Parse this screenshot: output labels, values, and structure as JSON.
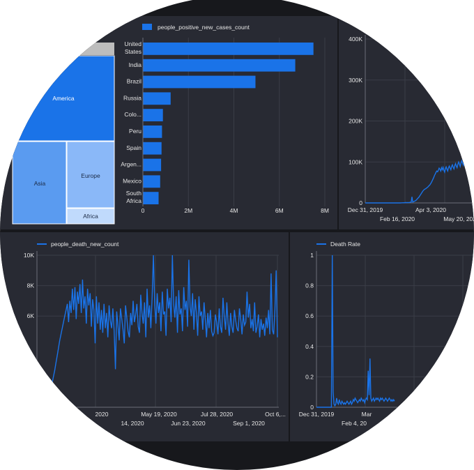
{
  "colors": {
    "background": "#17181c",
    "panel": "#282a33",
    "grid": "#3a3d47",
    "text": "#e6e6e6",
    "series": "#1a73e8",
    "treemap_america": "#1a73e8",
    "treemap_asia": "#5a9bf0",
    "treemap_europe": "#8ab8f8",
    "treemap_africa": "#c0dafc",
    "treemap_top": "#bdbdbd"
  },
  "chart_data": [
    {
      "type": "treemap",
      "items": [
        {
          "label": "America",
          "color": "#1a73e8"
        },
        {
          "label": "Asia",
          "color": "#5a9bf0"
        },
        {
          "label": "Europe",
          "color": "#8ab8f8"
        },
        {
          "label": "Africa",
          "color": "#c0dafc"
        }
      ]
    },
    {
      "type": "bar",
      "orientation": "horizontal",
      "legend": "people_positive_new_cases_count",
      "categories": [
        "United States",
        "India",
        "Brazil",
        "Russia",
        "Colo...",
        "Peru",
        "Spain",
        "Argen...",
        "Mexico",
        "South Africa"
      ],
      "values": [
        7500000,
        6700000,
        4950000,
        1220000,
        880000,
        840000,
        820000,
        800000,
        760000,
        690000
      ],
      "xlim": [
        0,
        8000000
      ],
      "xticks": [
        "0",
        "2M",
        "4M",
        "6M",
        "8M"
      ]
    },
    {
      "type": "line",
      "yticks": [
        "0",
        "100K",
        "200K",
        "300K",
        "400K"
      ],
      "ylim": [
        0,
        400000
      ],
      "xticks_top": [
        "Dec 31, 2019",
        "Apr 3, 2020"
      ],
      "xticks_bottom": [
        "Feb 16, 2020",
        "May 20, 2020"
      ],
      "x_start": "2019-12-31",
      "values": [
        0,
        0,
        0,
        0,
        0,
        0,
        0,
        0,
        0,
        0,
        0,
        0,
        0,
        0,
        0,
        0,
        0,
        0,
        0,
        0,
        0,
        0,
        0,
        0,
        0,
        0,
        0,
        0,
        0,
        0,
        0,
        0,
        0,
        0,
        0,
        0,
        0,
        0,
        0,
        0,
        0,
        0,
        0,
        0,
        0,
        0,
        200,
        400,
        300,
        500,
        300,
        600,
        800,
        600,
        900,
        700,
        1000,
        1200,
        1500,
        2000,
        15000,
        2000,
        3000,
        4000,
        5000,
        6000,
        8000,
        10000,
        12000,
        14000,
        17000,
        20000,
        23000,
        26000,
        29000,
        31000,
        33000,
        34000,
        35000,
        37000,
        38000,
        40000,
        42000,
        44000,
        47000,
        50000,
        54000,
        58000,
        62000,
        67000,
        71000,
        75000,
        78000,
        76000,
        80000,
        85000,
        82000,
        78000,
        86000,
        81000,
        87000,
        80000,
        75000,
        84000,
        88000,
        82000,
        78000,
        86000,
        90000,
        85000,
        81000,
        89000,
        93000,
        87000,
        83000,
        91000,
        96000,
        90000,
        86000,
        94000,
        100000,
        95000,
        89000,
        97000,
        103000,
        98000,
        92000,
        100000,
        106000,
        112000
      ]
    },
    {
      "type": "line",
      "legend": "people_death_new_count",
      "yticks": [
        "6K",
        "8K",
        "10K"
      ],
      "ylim": [
        0,
        10000
      ],
      "xticks_top": [
        "2020",
        "May 19, 2020",
        "Jul 28, 2020",
        "Oct 6,..."
      ],
      "xticks_bottom": [
        "14, 2020",
        "Jun 23, 2020",
        "Sep 1, 2020"
      ],
      "x_start": "2020-03-01",
      "values": [
        0,
        20,
        50,
        80,
        120,
        200,
        300,
        450,
        650,
        800,
        1000,
        1300,
        1600,
        2000,
        2400,
        2900,
        3400,
        3900,
        4400,
        4800,
        5200,
        5600,
        6000,
        6400,
        6800,
        5600,
        7000,
        6200,
        7800,
        6400,
        7900,
        5800,
        7600,
        6800,
        8100,
        6200,
        8400,
        6500,
        7300,
        5500,
        7800,
        6700,
        7500,
        5300,
        7100,
        6400,
        4200,
        7300,
        5500,
        6900,
        5100,
        6400,
        4900,
        6800,
        5200,
        6200,
        4600,
        6700,
        5700,
        5200,
        6500,
        5000,
        2500,
        6300,
        5400,
        4400,
        6500,
        5800,
        5100,
        4200,
        6700,
        5900,
        5000,
        4600,
        6200,
        5400,
        7000,
        5600,
        6100,
        6800,
        5300,
        4900,
        7400,
        6200,
        5500,
        6900,
        4600,
        7800,
        5900,
        6700,
        5200,
        7200,
        10000,
        6800,
        5500,
        7500,
        6200,
        6900,
        5000,
        7600,
        6100,
        6300,
        4700,
        7800,
        6500,
        7200,
        5600,
        10000,
        6800,
        5900,
        7300,
        4900,
        7700,
        6100,
        6500,
        5000,
        7900,
        6400,
        7000,
        5300,
        9700,
        6600,
        6000,
        7500,
        5100,
        7100,
        6200,
        4700,
        7300,
        6000,
        6300,
        5100,
        6900,
        5800,
        4600,
        6200,
        5200,
        6400,
        5000,
        4700,
        4900,
        6100,
        5600,
        4800,
        6500,
        5300,
        4900,
        7200,
        6000,
        5100,
        6900,
        5500,
        4700,
        6200,
        5300,
        4900,
        6400,
        5700,
        5200,
        5000,
        6500,
        5800,
        4800,
        6100,
        5400,
        5600,
        7600,
        5900,
        6800,
        5200,
        5800,
        5000,
        6900,
        4900,
        5300,
        6100,
        4600,
        5800,
        5100,
        5500,
        4700,
        5900,
        5200,
        6400,
        4800,
        8800,
        5100,
        4800,
        6400,
        9000,
        4600
      ]
    },
    {
      "type": "line",
      "legend": "Death Rate",
      "yticks": [
        "0",
        "0.2",
        "0.4",
        "0.6",
        "0.8",
        "1"
      ],
      "ylim": [
        0,
        1
      ],
      "xticks_top": [
        "Dec 31, 2019",
        "Mar"
      ],
      "xticks_bottom": [
        "Feb 4, 20"
      ],
      "x_start": "2019-12-31",
      "values": [
        0,
        0,
        0,
        0,
        0,
        0,
        0,
        0,
        0,
        0,
        0,
        0,
        0,
        0,
        0,
        0,
        0,
        0,
        1,
        0.1,
        0.02,
        0.01,
        0.02,
        0.06,
        0.03,
        0.02,
        0.05,
        0.03,
        0.02,
        0.04,
        0.03,
        0.02,
        0.03,
        0.02,
        0.03,
        0.04,
        0.03,
        0.02,
        0.03,
        0.04,
        0.02,
        0.03,
        0.05,
        0.04,
        0.06,
        0.05,
        0.04,
        0.03,
        0.04,
        0.05,
        0.04,
        0.06,
        0.05,
        0.04,
        0.05,
        0.03,
        0.05,
        0.06,
        0.05,
        0.24,
        0.08,
        0.32,
        0.06,
        0.04,
        0.05,
        0.06,
        0.04,
        0.05,
        0.06,
        0.05,
        0.06,
        0.05,
        0.04,
        0.06,
        0.05,
        0.06,
        0.05,
        0.04,
        0.05,
        0.06,
        0.05,
        0.04,
        0.05,
        0.06,
        0.05,
        0.04,
        0.05,
        0.04,
        0.05,
        0.04
      ]
    }
  ]
}
